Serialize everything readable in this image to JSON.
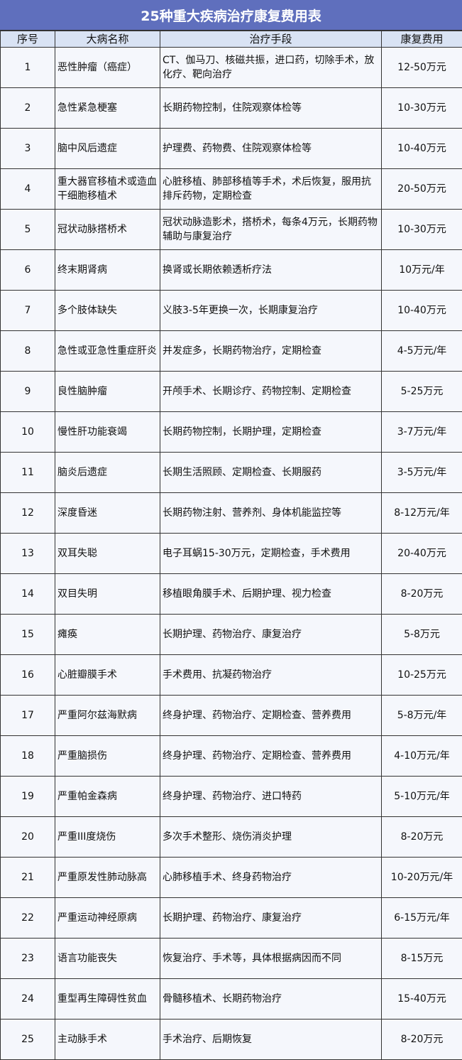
{
  "title": "25种重大疾病治疗康复费用表",
  "colors": {
    "title_bg": "#5f6fbd",
    "header_bg": "#d9e3f4",
    "row_bg": "#f5f7fc"
  },
  "headers": [
    "序号",
    "大病名称",
    "治疗手段",
    "康复费用"
  ],
  "rows": [
    [
      "1",
      "恶性肿瘤（癌症）",
      "CT、伽马刀、核磁共振，进口药，切除手术，放化疗、靶向治疗",
      "12-50万元"
    ],
    [
      "2",
      "急性紧急梗塞",
      "长期药物控制，住院观察体检等",
      "10-30万元"
    ],
    [
      "3",
      "脑中风后遗症",
      "护理费、药物费、住院观察体检等",
      "10-40万元"
    ],
    [
      "4",
      "重大器官移植术或造血干细胞移植术",
      "心脏移植、肺部移植等手术，术后恢复，服用抗排斥药物，定期检查",
      "20-50万元"
    ],
    [
      "5",
      "冠状动脉搭桥术",
      "冠状动脉造影术，搭桥术，每条4万元，长期药物辅助与康复治疗",
      "10-30万元"
    ],
    [
      "6",
      "终末期肾病",
      "换肾或长期依赖透析疗法",
      "10万元/年"
    ],
    [
      "7",
      "多个肢体缺失",
      "义肢3-5年更换一次，长期康复治疗",
      "10-40万元"
    ],
    [
      "8",
      "急性或亚急性重症肝炎",
      "并发症多，长期药物治疗，定期检查",
      "4-5万元/年"
    ],
    [
      "9",
      "良性脑肿瘤",
      "开颅手术、长期诊疗、药物控制、定期检查",
      "5-25万元"
    ],
    [
      "10",
      "慢性肝功能衰竭",
      "长期药物控制，长期护理，定期检查",
      "3-7万元/年"
    ],
    [
      "11",
      "脑炎后遗症",
      "长期生活照顾、定期检查、长期服药",
      "3-5万元/年"
    ],
    [
      "12",
      "深度昏迷",
      "长期药物注射、营养剂、身体机能监控等",
      "8-12万元/年"
    ],
    [
      "13",
      "双耳失聪",
      "电子耳蜗15-30万元，定期检查，手术费用",
      "20-40万元"
    ],
    [
      "14",
      "双目失明",
      "移植眼角膜手术、后期护理、视力检查",
      "8-20万元"
    ],
    [
      "15",
      "瘫痪",
      "长期护理、药物治疗、康复治疗",
      "5-8万元"
    ],
    [
      "16",
      "心脏瓣膜手术",
      "手术费用、抗凝药物治疗",
      "10-25万元"
    ],
    [
      "17",
      "严重阿尔兹海默病",
      "终身护理、药物治疗、定期检查、营养费用",
      "5-8万元/年"
    ],
    [
      "18",
      "严重脑损伤",
      "终身护理、药物治疗、定期检查、营养费用",
      "4-10万元/年"
    ],
    [
      "19",
      "严重帕金森病",
      "终身护理、药物治疗、进口特药",
      "5-10万元/年"
    ],
    [
      "20",
      "严重III度烧伤",
      "多次手术整形、烧伤消炎护理",
      "8-20万元"
    ],
    [
      "21",
      "严重原发性肺动脉高",
      "心肺移植手术、终身药物治疗",
      "10-20万元/年"
    ],
    [
      "22",
      "严重运动神经原病",
      "长期护理、药物治疗、康复治疗",
      "6-15万元/年"
    ],
    [
      "23",
      "语言功能丧失",
      "恢复治疗、手术等，具体根据病因而不同",
      "8-15万元"
    ],
    [
      "24",
      "重型再生障碍性贫血",
      "骨髓移植术、长期药物治疗",
      "15-40万元"
    ],
    [
      "25",
      "主动脉手术",
      "手术治疗、后期恢复",
      "8-20万元"
    ]
  ]
}
